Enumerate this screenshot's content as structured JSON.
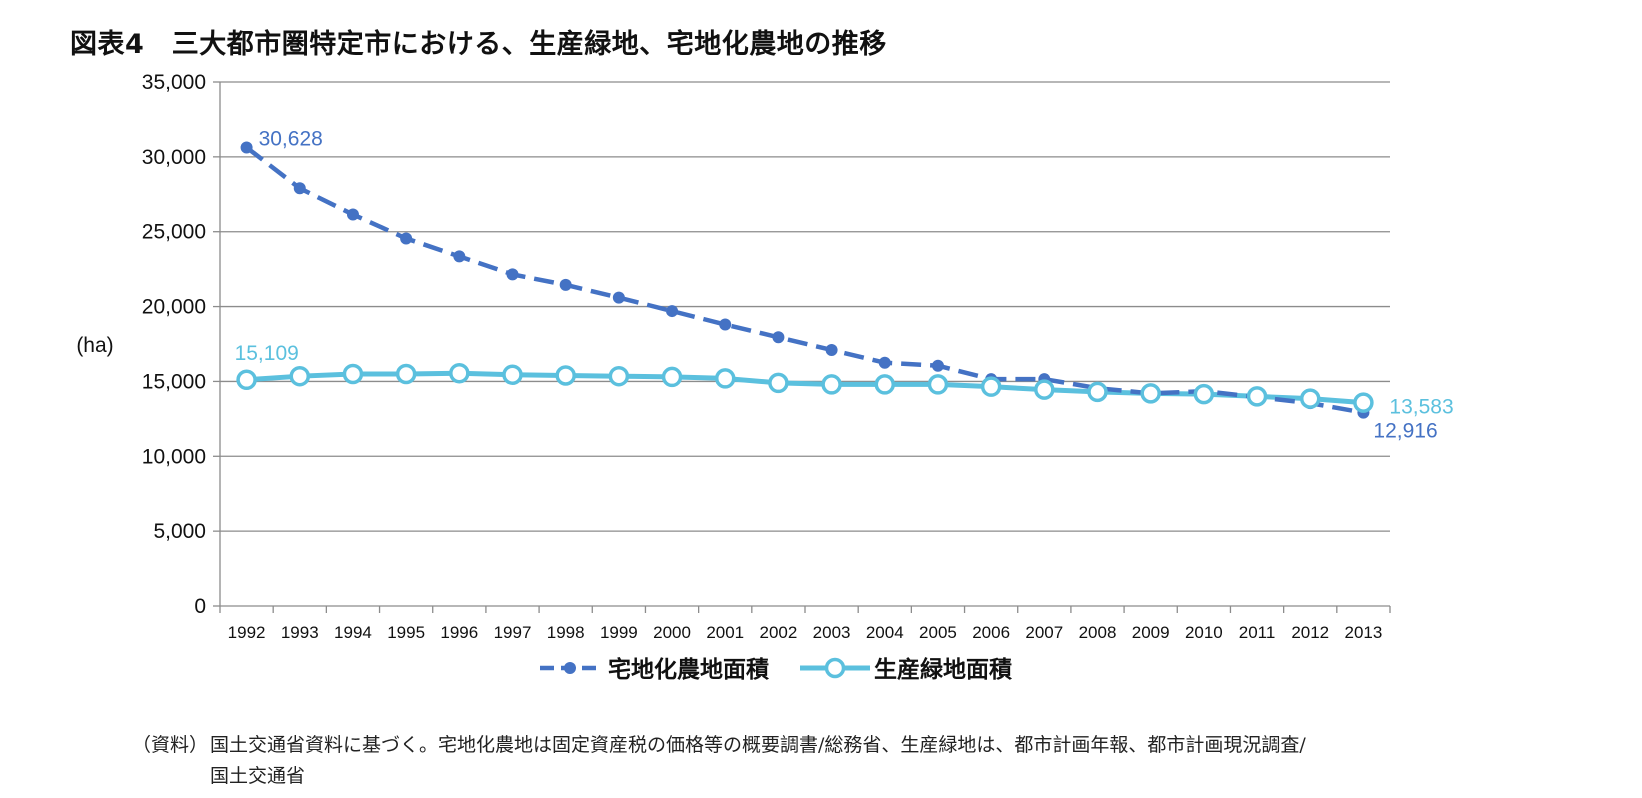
{
  "title": "図表4　三大都市圏特定市における、生産緑地、宅地化農地の推移",
  "source": {
    "label": "（資料）",
    "text_line1": "国土交通省資料に基づく。宅地化農地は固定資産税の価格等の概要調書/総務省、生産緑地は、都市計画年報、都市計画現況調査/",
    "text_line2": "国土交通省"
  },
  "chart_data": {
    "type": "line",
    "title": "図表4　三大都市圏特定市における、生産緑地、宅地化農地の推移",
    "xlabel": "",
    "ylabel": "(ha)",
    "ylim": [
      0,
      35000
    ],
    "yticks": [
      0,
      5000,
      10000,
      15000,
      20000,
      25000,
      30000,
      35000
    ],
    "ytick_labels": [
      "0",
      "5,000",
      "10,000",
      "15,000",
      "20,000",
      "25,000",
      "30,000",
      "35,000"
    ],
    "grid": true,
    "legend_position": "bottom",
    "categories": [
      "1992",
      "1993",
      "1994",
      "1995",
      "1996",
      "1997",
      "1998",
      "1999",
      "2000",
      "2001",
      "2002",
      "2003",
      "2004",
      "2005",
      "2006",
      "2007",
      "2008",
      "2009",
      "2010",
      "2011",
      "2012",
      "2013"
    ],
    "series": [
      {
        "name": "宅地化農地面積",
        "color": "#4472c4",
        "style": "dashed-dot-marker",
        "values": [
          30628,
          27900,
          26150,
          24550,
          23350,
          22150,
          21450,
          20600,
          19700,
          18800,
          17950,
          17100,
          16250,
          16050,
          15150,
          15150,
          14550,
          14200,
          14350,
          13950,
          13550,
          12916
        ],
        "labels": [
          {
            "index": 0,
            "text": "30,628"
          },
          {
            "index": 21,
            "text": "12,916"
          }
        ]
      },
      {
        "name": "生産緑地面積",
        "color": "#5bc0de",
        "style": "solid-hollow-marker",
        "values": [
          15109,
          15350,
          15500,
          15500,
          15550,
          15450,
          15400,
          15350,
          15300,
          15200,
          14900,
          14800,
          14800,
          14800,
          14650,
          14450,
          14300,
          14200,
          14150,
          14000,
          13850,
          13583
        ],
        "labels": [
          {
            "index": 0,
            "text": "15,109"
          },
          {
            "index": 21,
            "text": "13,583"
          }
        ]
      }
    ]
  }
}
